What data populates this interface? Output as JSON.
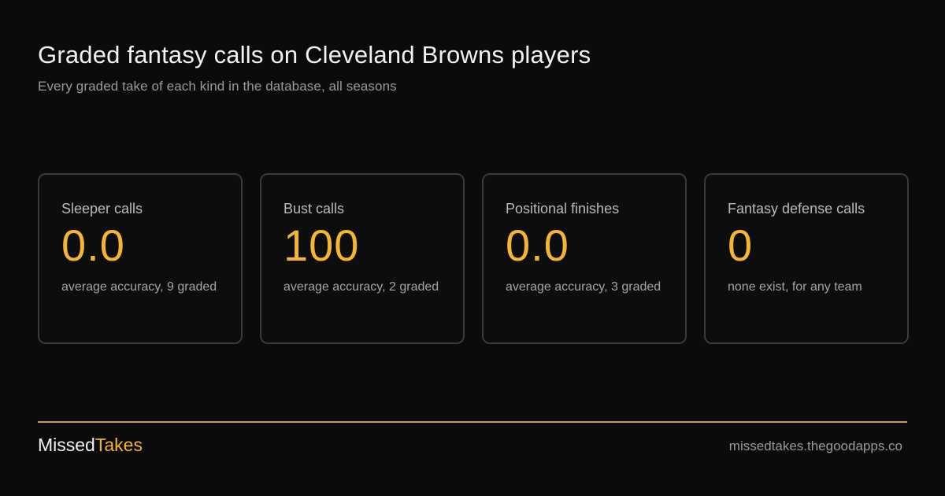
{
  "header": {
    "title": "Graded fantasy calls on Cleveland Browns players",
    "subtitle": "Every graded take of each kind in the database, all seasons"
  },
  "cards": [
    {
      "label": "Sleeper calls",
      "value": "0.0",
      "note": "average accuracy, 9 graded"
    },
    {
      "label": "Bust calls",
      "value": "100",
      "note": "average accuracy, 2 graded"
    },
    {
      "label": "Positional finishes",
      "value": "0.0",
      "note": "average accuracy, 3 graded"
    },
    {
      "label": "Fantasy defense calls",
      "value": "0",
      "note": "none exist, for any team"
    }
  ],
  "footer": {
    "brand_part1": "Missed",
    "brand_part2": "Takes",
    "site": "missedtakes.thegoodapps.co"
  },
  "colors": {
    "background": "#0b0b0b",
    "accent": "#f4b62e",
    "card_border": "#3a3a3e"
  }
}
